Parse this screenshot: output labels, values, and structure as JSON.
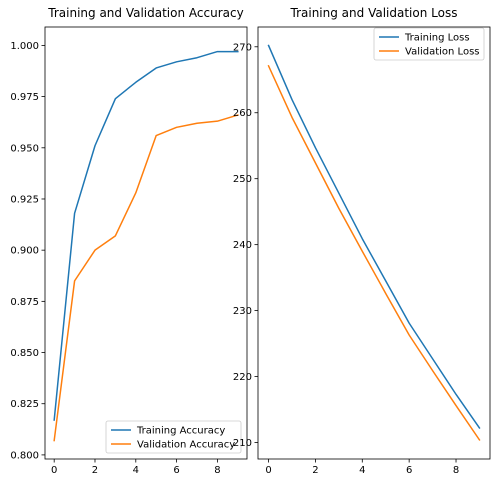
{
  "chart_data": [
    {
      "type": "line",
      "title": "Training and Validation Accuracy",
      "xlabel": "",
      "ylabel": "",
      "x": [
        0,
        1,
        2,
        3,
        4,
        5,
        6,
        7,
        8,
        9
      ],
      "xlim": [
        -0.45,
        9.45
      ],
      "ylim": [
        0.798,
        1.009
      ],
      "xticks": [
        0,
        2,
        4,
        6,
        8
      ],
      "xtick_labels": [
        "0",
        "2",
        "4",
        "6",
        "8"
      ],
      "yticks": [
        0.8,
        0.825,
        0.85,
        0.875,
        0.9,
        0.925,
        0.95,
        0.975,
        1.0
      ],
      "ytick_labels": [
        "0.800",
        "0.825",
        "0.850",
        "0.875",
        "0.900",
        "0.925",
        "0.950",
        "0.975",
        "1.000"
      ],
      "grid": false,
      "legend_position": "lower-right",
      "series": [
        {
          "name": "Training Accuracy",
          "color": "#1f77b4",
          "values": [
            0.817,
            0.918,
            0.951,
            0.974,
            0.982,
            0.989,
            0.992,
            0.994,
            0.997,
            0.997
          ]
        },
        {
          "name": "Validation Accuracy",
          "color": "#ff7f0e",
          "values": [
            0.807,
            0.885,
            0.9,
            0.907,
            0.928,
            0.956,
            0.96,
            0.962,
            0.963,
            0.966
          ]
        }
      ]
    },
    {
      "type": "line",
      "title": "Training and Validation Loss",
      "xlabel": "",
      "ylabel": "",
      "x": [
        0,
        1,
        2,
        3,
        4,
        5,
        6,
        7,
        8,
        9
      ],
      "xlim": [
        -0.45,
        9.45
      ],
      "ylim": [
        207.5,
        273.0
      ],
      "xticks": [
        0,
        2,
        4,
        6,
        8
      ],
      "xtick_labels": [
        "0",
        "2",
        "4",
        "6",
        "8"
      ],
      "yticks": [
        210,
        220,
        230,
        240,
        250,
        260,
        270
      ],
      "ytick_labels": [
        "210",
        "220",
        "230",
        "240",
        "250",
        "260",
        "270"
      ],
      "grid": false,
      "legend_position": "upper-right",
      "series": [
        {
          "name": "Training Loss",
          "color": "#1f77b4",
          "values": [
            270.2,
            262.0,
            254.7,
            247.8,
            240.9,
            234.5,
            228.1,
            222.7,
            217.3,
            212.2
          ]
        },
        {
          "name": "Validation Loss",
          "color": "#ff7f0e",
          "values": [
            267.1,
            259.3,
            252.4,
            245.5,
            239.0,
            232.6,
            226.3,
            220.9,
            215.6,
            210.4
          ]
        }
      ]
    }
  ]
}
